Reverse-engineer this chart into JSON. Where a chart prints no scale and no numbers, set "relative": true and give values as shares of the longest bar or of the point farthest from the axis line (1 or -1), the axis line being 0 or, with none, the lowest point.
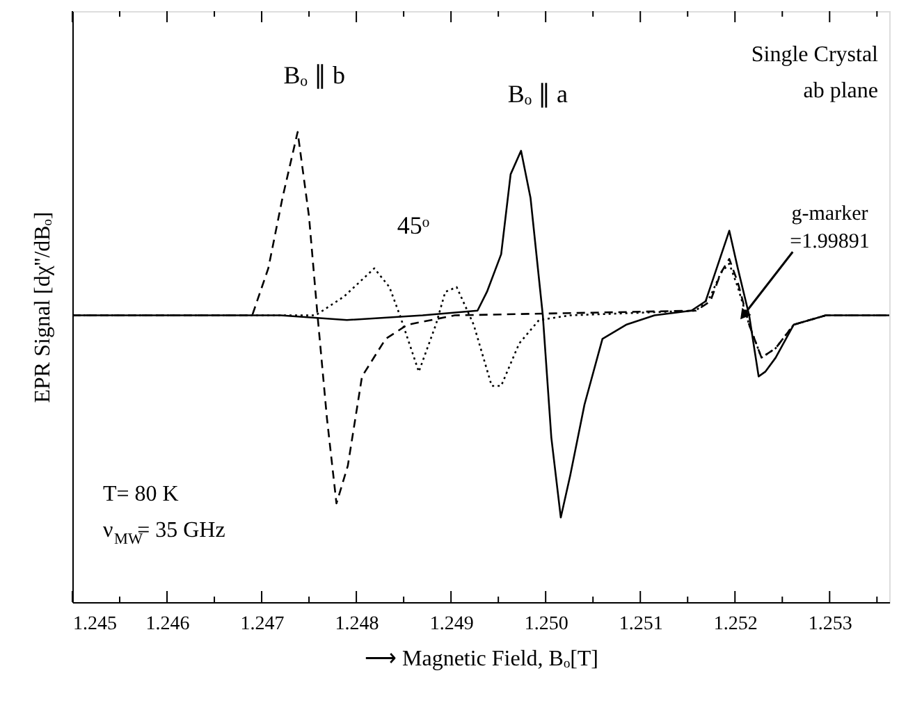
{
  "chart_data": {
    "type": "line",
    "relative": true,
    "xlabel": "⟶ Magnetic Field, Bₒ[T]",
    "ylabel": "EPR Signal [dχ''/dBₒ]",
    "xlim": [
      1.245,
      1.25363
    ],
    "xticks": [
      1.245,
      {
        "value": 1.2455,
        "label": null
      },
      1.246,
      {
        "value": 1.2465,
        "label": null
      },
      1.247,
      {
        "value": 1.2475,
        "label": null
      },
      1.248,
      {
        "value": 1.2485,
        "label": null
      },
      1.249,
      {
        "value": 1.2495,
        "label": null
      },
      {
        "value": 1.25,
        "label": "1.250"
      },
      {
        "value": 1.2505,
        "label": null
      },
      1.251,
      {
        "value": 1.2515,
        "label": null
      },
      1.252,
      {
        "value": 1.2525,
        "label": null
      },
      1.253,
      {
        "value": 1.2535,
        "label": null
      }
    ],
    "grid": false,
    "legend": false,
    "marker": "none",
    "series": [
      {
        "name": "Bₒ ∥ b",
        "color": "#000000",
        "line_style": "dashed",
        "x": [
          1.245,
          1.2469,
          1.24707,
          1.24722,
          1.24738,
          1.2475,
          1.24759,
          1.24769,
          1.24779,
          1.24791,
          1.24806,
          1.24831,
          1.24854,
          1.24904,
          1.25159,
          1.25174,
          1.25185,
          1.25194,
          1.25203,
          1.25215,
          1.25228,
          1.25243,
          1.25262,
          1.25296,
          1.25363
        ],
        "values": [
          0.61,
          0.61,
          0.71,
          0.86,
          1,
          0.82,
          0.61,
          0.39,
          0.21,
          0.29,
          0.48,
          0.56,
          0.59,
          0.61,
          0.62,
          0.64,
          0.7,
          0.73,
          0.68,
          0.59,
          0.52,
          0.54,
          0.59,
          0.61,
          0.61
        ]
      },
      {
        "name": "Bₒ ∥ a",
        "color": "#000000",
        "line_style": "solid",
        "x": [
          1.245,
          1.2472,
          1.2479,
          1.2487,
          1.24928,
          1.24938,
          1.24953,
          1.24963,
          1.24974,
          1.24984,
          1.24997,
          1.25006,
          1.25016,
          1.25026,
          1.25041,
          1.2506,
          1.25085,
          1.25115,
          1.25154,
          1.25169,
          1.25184,
          1.25194,
          1.25203,
          1.25215,
          1.25225,
          1.25232,
          1.25243,
          1.25262,
          1.25296,
          1.25363
        ],
        "values": [
          0.61,
          0.61,
          0.6,
          0.61,
          0.62,
          0.66,
          0.74,
          0.91,
          0.96,
          0.86,
          0.61,
          0.35,
          0.18,
          0.27,
          0.42,
          0.56,
          0.59,
          0.61,
          0.62,
          0.64,
          0.73,
          0.79,
          0.71,
          0.61,
          0.48,
          0.49,
          0.52,
          0.59,
          0.61,
          0.61
        ]
      },
      {
        "name": "45ᵒ",
        "color": "#000000",
        "line_style": "dotted",
        "x": [
          1.245,
          1.24757,
          1.24787,
          1.24819,
          1.24835,
          1.24846,
          1.24866,
          1.24884,
          1.24894,
          1.24906,
          1.24924,
          1.24943,
          1.24953,
          1.24972,
          1.24993,
          1.25026,
          1.25159,
          1.25174,
          1.25185,
          1.25194,
          1.25203,
          1.25215,
          1.25228,
          1.25243,
          1.25262,
          1.25296,
          1.25363
        ],
        "values": [
          0.61,
          0.61,
          0.65,
          0.71,
          0.67,
          0.61,
          0.49,
          0.59,
          0.66,
          0.67,
          0.59,
          0.46,
          0.46,
          0.55,
          0.6,
          0.61,
          0.62,
          0.65,
          0.7,
          0.72,
          0.67,
          0.59,
          0.52,
          0.54,
          0.59,
          0.61,
          0.61
        ]
      }
    ],
    "annotations": [
      "Single Crystal\nab plane",
      "T= 80 K\nν$_{MW}$= 35 GHz",
      {
        "text": "g-marker\n=1.99891",
        "x": 1.25209,
        "y": 0.61
      }
    ]
  }
}
